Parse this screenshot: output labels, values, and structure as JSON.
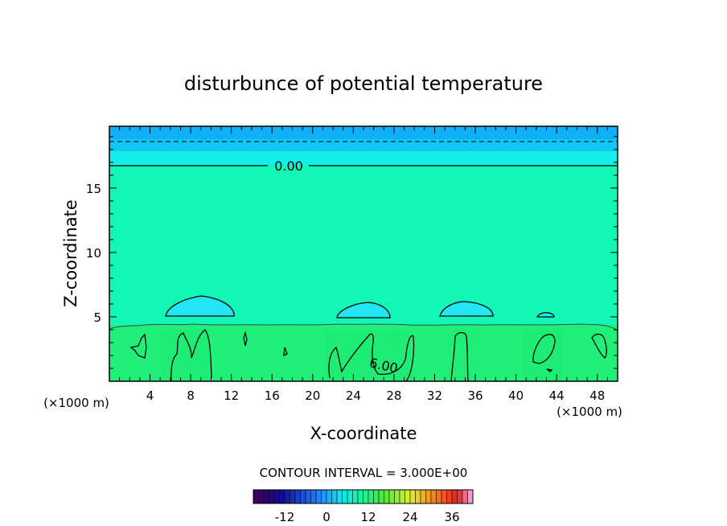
{
  "chart_data": {
    "type": "heatmap",
    "title": "disturbunce of potential temperature",
    "xlabel": "X-coordinate",
    "ylabel": "Z-coordinate",
    "x_unit_left": "(×1000 m)",
    "x_unit_right": "(×1000 m)",
    "xlim": [
      0,
      50
    ],
    "ylim": [
      0,
      19.8
    ],
    "x_ticks": [
      4,
      8,
      12,
      16,
      20,
      24,
      28,
      32,
      36,
      40,
      44,
      48
    ],
    "y_ticks": [
      5,
      10,
      15
    ],
    "contour_interval_text": "CONTOUR INTERVAL = 3.000E+00",
    "contour_labels": [
      {
        "text": "0.00",
        "x": 17.3,
        "z": 16.8
      },
      {
        "text": "6.00",
        "x": 27.2,
        "z": 1.4
      }
    ],
    "dashed_contour_level_z": 18.7,
    "colorbar": {
      "ticks": [
        "-12",
        "0",
        "12",
        "24",
        "36"
      ],
      "range": [
        -21,
        42
      ]
    },
    "bands": [
      {
        "z_from": 0,
        "z_to": 4.3,
        "value": 4.5
      },
      {
        "z_from": 4.3,
        "z_to": 16.8,
        "value": 1.5
      },
      {
        "z_from": 16.8,
        "z_to": 17.8,
        "value": -1.5
      },
      {
        "z_from": 17.8,
        "z_to": 19.8,
        "value": -4.5
      }
    ],
    "colors": {
      "lower_band": "#20f07a",
      "middle_band": "#13f7b6",
      "upper_band_1": "#14eeea",
      "upper_band_2": "#12c6f4",
      "top_band": "#0fb0f8",
      "cool_blob": "#22e6f4",
      "contour": "#000000"
    }
  }
}
